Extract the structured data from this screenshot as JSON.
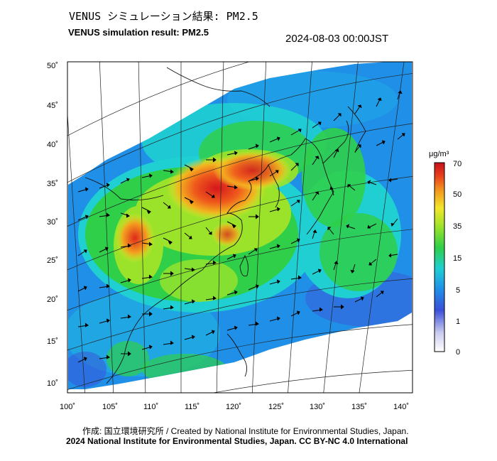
{
  "header": {
    "title_jp": "VENUS シミュレーション結果: PM2.5",
    "title_en": "VENUS simulation result: PM2.5",
    "timestamp": "2024-08-03 00:00JST"
  },
  "axes": {
    "lat_labels": [
      "50˚",
      "45˚",
      "40˚",
      "35˚",
      "30˚",
      "25˚",
      "20˚",
      "15˚",
      "10˚"
    ],
    "lon_labels": [
      "100˚",
      "105˚",
      "110˚",
      "115˚",
      "120˚",
      "125˚",
      "130˚",
      "135˚",
      "140˚"
    ]
  },
  "colorbar": {
    "unit": "μg/m³",
    "ticks": [
      "70",
      "50",
      "35",
      "15",
      "5",
      "1",
      "0"
    ],
    "colors": [
      "#ffffff",
      "#3a4fd8",
      "#1f8fe8",
      "#1fcfd2",
      "#2fcf4a",
      "#9be32a",
      "#f3e62b",
      "#f39a1e",
      "#e8401c",
      "#c8101c"
    ]
  },
  "footer": {
    "credit": "作成: 国立環境研究所 / Created by National Institute for Environmental Studies, Japan.",
    "copyright": "2024 National Institute for Environmental Studies, Japan. CC BY-NC 4.0 International"
  }
}
